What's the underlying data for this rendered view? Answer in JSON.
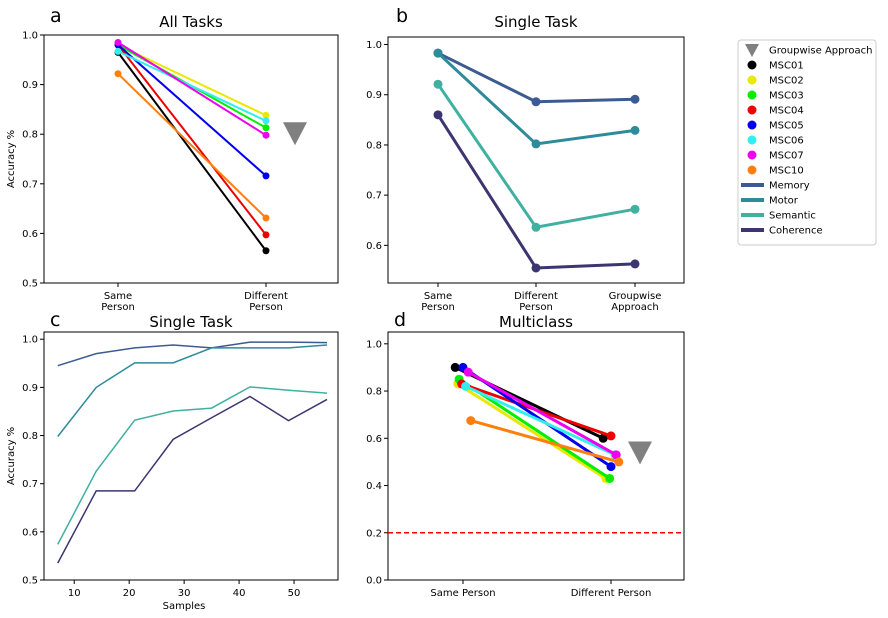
{
  "colors": {
    "MSC01": "#000000",
    "MSC02": "#e8e800",
    "MSC03": "#00ee00",
    "MSC04": "#ee0000",
    "MSC05": "#0000ee",
    "MSC06": "#33eeee",
    "MSC07": "#ee00ee",
    "MSC10": "#ff7f0e",
    "Memory": "#3b5b92",
    "Motor": "#2e8b9a",
    "Semantic": "#40b0a0",
    "Coherence": "#3b3670",
    "Groupwise": "#808080",
    "Chance": "#ee0000"
  },
  "legend": {
    "entries": [
      {
        "label": "Groupwise Approach",
        "marker": "triangle",
        "key": "Groupwise"
      },
      {
        "label": "MSC01",
        "marker": "dot",
        "key": "MSC01"
      },
      {
        "label": "MSC02",
        "marker": "dot",
        "key": "MSC02"
      },
      {
        "label": "MSC03",
        "marker": "dot",
        "key": "MSC03"
      },
      {
        "label": "MSC04",
        "marker": "dot",
        "key": "MSC04"
      },
      {
        "label": "MSC05",
        "marker": "dot",
        "key": "MSC05"
      },
      {
        "label": "MSC06",
        "marker": "dot",
        "key": "MSC06"
      },
      {
        "label": "MSC07",
        "marker": "dot",
        "key": "MSC07"
      },
      {
        "label": "MSC10",
        "marker": "dot",
        "key": "MSC10"
      },
      {
        "label": "Memory",
        "marker": "line",
        "key": "Memory"
      },
      {
        "label": "Motor",
        "marker": "line",
        "key": "Motor"
      },
      {
        "label": "Semantic",
        "marker": "line",
        "key": "Semantic"
      },
      {
        "label": "Coherence",
        "marker": "line",
        "key": "Coherence"
      }
    ]
  },
  "chart_data": [
    {
      "panel": "a",
      "type": "line",
      "title": "All Tasks",
      "ylabel": "Accuracy %",
      "xlabel": "",
      "categories": [
        "Same\nPerson",
        "Different\nPerson"
      ],
      "ylim": [
        0.5,
        1.0
      ],
      "yticks": [
        "0.5",
        "0.6",
        "0.7",
        "0.8",
        "0.9",
        "1.0"
      ],
      "series": [
        {
          "name": "MSC01",
          "values": [
            0.965,
            0.565
          ]
        },
        {
          "name": "MSC02",
          "values": [
            0.98,
            0.838
          ]
        },
        {
          "name": "MSC03",
          "values": [
            0.98,
            0.813
          ]
        },
        {
          "name": "MSC04",
          "values": [
            0.98,
            0.597
          ]
        },
        {
          "name": "MSC05",
          "values": [
            0.98,
            0.716
          ]
        },
        {
          "name": "MSC06",
          "values": [
            0.967,
            0.827
          ]
        },
        {
          "name": "MSC07",
          "values": [
            0.985,
            0.798
          ]
        },
        {
          "name": "MSC10",
          "values": [
            0.922,
            0.631
          ]
        }
      ],
      "groupwise": 0.8
    },
    {
      "panel": "b",
      "type": "line",
      "title": "Single Task",
      "xlabel": "",
      "ylabel": "",
      "categories": [
        "Same\nPerson",
        "Different\nPerson",
        "Groupwise\nApproach"
      ],
      "ylim": [
        0.525,
        1.015
      ],
      "yticks": [
        "0.6",
        "0.7",
        "0.8",
        "0.9",
        "1.0"
      ],
      "series": [
        {
          "name": "Memory",
          "values": [
            0.983,
            0.886,
            0.891
          ]
        },
        {
          "name": "Motor",
          "values": [
            0.983,
            0.802,
            0.829
          ]
        },
        {
          "name": "Semantic",
          "values": [
            0.921,
            0.636,
            0.672
          ]
        },
        {
          "name": "Coherence",
          "values": [
            0.86,
            0.555,
            0.563
          ]
        }
      ]
    },
    {
      "panel": "c",
      "type": "line",
      "title": "Single Task",
      "xlabel": "Samples",
      "ylabel": "Accuracy %",
      "xlim": [
        4.5,
        58
      ],
      "ylim": [
        0.5,
        1.015
      ],
      "xticks": [
        "10",
        "20",
        "30",
        "40",
        "50"
      ],
      "yticks": [
        "0.5",
        "0.6",
        "0.7",
        "0.8",
        "0.9",
        "1.0"
      ],
      "series": [
        {
          "name": "Memory",
          "x": [
            7,
            14,
            21,
            28,
            35,
            42,
            49,
            56
          ],
          "values": [
            0.945,
            0.97,
            0.982,
            0.988,
            0.982,
            0.994,
            0.994,
            0.993
          ]
        },
        {
          "name": "Motor",
          "x": [
            7,
            14,
            21,
            28,
            35,
            42,
            49,
            56
          ],
          "values": [
            0.798,
            0.9,
            0.951,
            0.951,
            0.982,
            0.982,
            0.982,
            0.988
          ]
        },
        {
          "name": "Semantic",
          "x": [
            7,
            14,
            21,
            28,
            35,
            42,
            49,
            56
          ],
          "values": [
            0.574,
            0.726,
            0.832,
            0.851,
            0.857,
            0.901,
            0.894,
            0.888
          ]
        },
        {
          "name": "Coherence",
          "x": [
            7,
            14,
            21,
            28,
            35,
            42,
            49,
            56
          ],
          "values": [
            0.535,
            0.685,
            0.685,
            0.792,
            0.837,
            0.881,
            0.831,
            0.875
          ]
        }
      ]
    },
    {
      "panel": "d",
      "type": "line",
      "title": "Multiclass",
      "xlabel": "",
      "ylabel": "",
      "categories": [
        "Same Person",
        "Different Person"
      ],
      "ylim": [
        0.0,
        1.05
      ],
      "yticks": [
        "0.0",
        "0.2",
        "0.4",
        "0.6",
        "0.8",
        "1.0"
      ],
      "chance": 0.2,
      "series": [
        {
          "name": "MSC01",
          "values": [
            0.9,
            0.6
          ],
          "offset": [
            -0.06,
            -0.06
          ]
        },
        {
          "name": "MSC02",
          "values": [
            0.83,
            0.43
          ],
          "offset": [
            -0.04,
            -0.04
          ]
        },
        {
          "name": "MSC03",
          "values": [
            0.85,
            0.43
          ],
          "offset": [
            -0.03,
            -0.01
          ]
        },
        {
          "name": "MSC04",
          "values": [
            0.83,
            0.61
          ],
          "offset": [
            -0.01,
            0.0
          ]
        },
        {
          "name": "MSC05",
          "values": [
            0.9,
            0.48
          ],
          "offset": [
            0.0,
            0.0
          ]
        },
        {
          "name": "MSC06",
          "values": [
            0.82,
            0.53
          ],
          "offset": [
            0.02,
            0.03
          ]
        },
        {
          "name": "MSC07",
          "values": [
            0.88,
            0.53
          ],
          "offset": [
            0.04,
            0.04
          ]
        },
        {
          "name": "MSC10",
          "values": [
            0.675,
            0.5
          ],
          "offset": [
            0.06,
            0.06
          ]
        }
      ],
      "groupwise": 0.54
    }
  ]
}
